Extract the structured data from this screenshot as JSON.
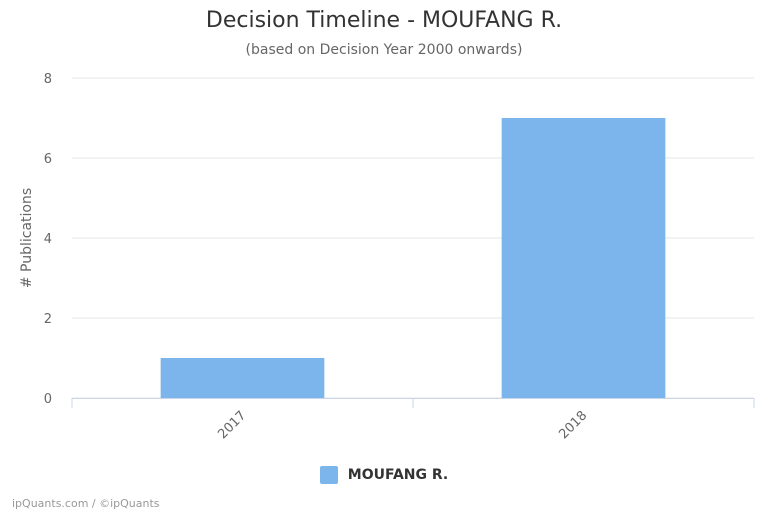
{
  "chart_data": {
    "type": "bar",
    "title": "Decision Timeline - MOUFANG R.",
    "subtitle": "(based on Decision Year 2000 onwards)",
    "xlabel": "",
    "ylabel": "# Publications",
    "categories": [
      "2017",
      "2018"
    ],
    "series": [
      {
        "name": "MOUFANG R.",
        "values": [
          1,
          7
        ],
        "color": "#7cb5ec"
      }
    ],
    "ylim": [
      0,
      8
    ],
    "yticks": [
      "0",
      "2",
      "4",
      "6",
      "8"
    ],
    "grid": true,
    "legend": "bottom-center"
  },
  "credits": "ipQuants.com / ©ipQuants"
}
